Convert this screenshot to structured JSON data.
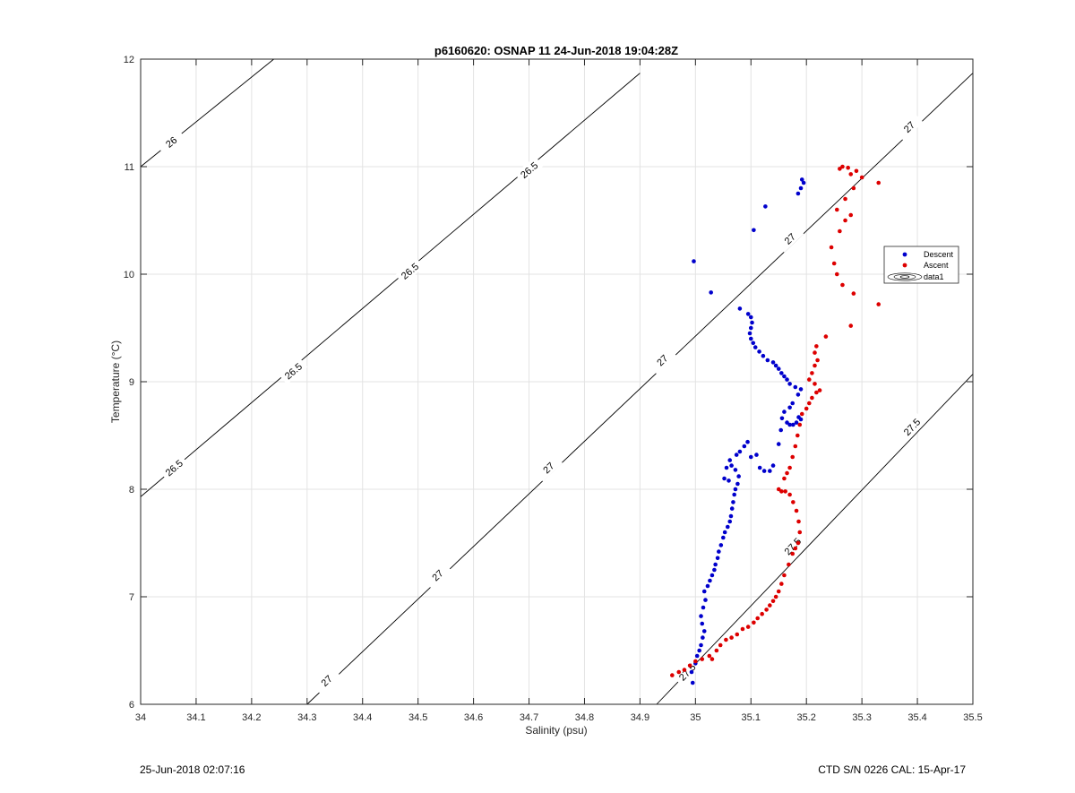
{
  "footer": {
    "timestamp": "25-Jun-2018 02:07:16",
    "instrument": "CTD S/N 0226  CAL: 15-Apr-17"
  },
  "chart_data": {
    "type": "scatter",
    "title": "p6160620: OSNAP 11 24-Jun-2018 19:04:28Z",
    "xlabel": "Salinity (psu)",
    "ylabel": "Temperature (°C)",
    "xlim": [
      34,
      35.5
    ],
    "ylim": [
      6,
      12
    ],
    "grid": true,
    "xticks": [
      "34",
      "34.1",
      "34.2",
      "34.3",
      "34.4",
      "34.5",
      "34.6",
      "34.7",
      "34.8",
      "34.9",
      "35",
      "35.1",
      "35.2",
      "35.3",
      "35.4",
      "35.5"
    ],
    "yticks": [
      "6",
      "7",
      "8",
      "9",
      "10",
      "11",
      "12"
    ],
    "legend_position": "right",
    "colors": {
      "descent": "#0000cc",
      "ascent": "#dd0000",
      "contour": "#000000"
    },
    "contours": [
      {
        "label": "26",
        "points": [
          [
            34.0,
            11.0
          ],
          [
            34.24,
            12.0
          ]
        ],
        "label_points": [
          [
            34.055,
            11.23
          ]
        ]
      },
      {
        "label": "26.5",
        "points": [
          [
            34.0,
            7.93
          ],
          [
            34.9,
            11.87
          ]
        ],
        "label_points": [
          [
            34.06,
            8.2
          ],
          [
            34.275,
            9.1
          ],
          [
            34.485,
            10.03
          ],
          [
            34.7,
            10.97
          ]
        ]
      },
      {
        "label": "27",
        "points": [
          [
            34.3,
            6.0
          ],
          [
            35.5,
            11.87
          ]
        ],
        "label_points": [
          [
            34.335,
            6.22
          ],
          [
            34.535,
            7.2
          ],
          [
            34.735,
            8.2
          ],
          [
            34.94,
            9.2
          ],
          [
            35.17,
            10.33
          ],
          [
            35.385,
            11.37
          ]
        ]
      },
      {
        "label": "27.5",
        "points": [
          [
            34.93,
            6.0
          ],
          [
            35.5,
            9.07
          ]
        ],
        "label_points": [
          [
            34.985,
            6.3
          ],
          [
            35.175,
            7.47
          ],
          [
            35.39,
            8.58
          ]
        ]
      }
    ],
    "series": [
      {
        "name": "Descent",
        "points": [
          [
            34.995,
            6.2
          ],
          [
            34.993,
            6.3
          ],
          [
            35.0,
            6.38
          ],
          [
            35.003,
            6.45
          ],
          [
            35.007,
            6.5
          ],
          [
            35.01,
            6.55
          ],
          [
            35.013,
            6.62
          ],
          [
            35.016,
            6.68
          ],
          [
            35.012,
            6.75
          ],
          [
            35.01,
            6.82
          ],
          [
            35.014,
            6.9
          ],
          [
            35.018,
            6.97
          ],
          [
            35.016,
            7.05
          ],
          [
            35.022,
            7.1
          ],
          [
            35.026,
            7.15
          ],
          [
            35.03,
            7.2
          ],
          [
            35.034,
            7.25
          ],
          [
            35.036,
            7.3
          ],
          [
            35.04,
            7.36
          ],
          [
            35.042,
            7.42
          ],
          [
            35.046,
            7.48
          ],
          [
            35.05,
            7.55
          ],
          [
            35.053,
            7.6
          ],
          [
            35.058,
            7.65
          ],
          [
            35.062,
            7.7
          ],
          [
            35.064,
            7.75
          ],
          [
            35.066,
            7.82
          ],
          [
            35.068,
            7.88
          ],
          [
            35.07,
            7.95
          ],
          [
            35.072,
            8.0
          ],
          [
            35.076,
            8.05
          ],
          [
            35.078,
            8.12
          ],
          [
            35.072,
            8.18
          ],
          [
            35.065,
            8.22
          ],
          [
            35.06,
            8.08
          ],
          [
            35.052,
            8.1
          ],
          [
            35.056,
            8.2
          ],
          [
            35.062,
            8.27
          ],
          [
            35.074,
            8.32
          ],
          [
            35.08,
            8.35
          ],
          [
            35.088,
            8.4
          ],
          [
            35.094,
            8.44
          ],
          [
            35.1,
            8.3
          ],
          [
            35.11,
            8.32
          ],
          [
            35.116,
            8.2
          ],
          [
            35.124,
            8.17
          ],
          [
            35.134,
            8.17
          ],
          [
            35.14,
            8.22
          ],
          [
            35.15,
            8.42
          ],
          [
            35.154,
            8.55
          ],
          [
            35.156,
            8.66
          ],
          [
            35.16,
            8.72
          ],
          [
            35.165,
            8.62
          ],
          [
            35.17,
            8.6
          ],
          [
            35.176,
            8.6
          ],
          [
            35.182,
            8.62
          ],
          [
            35.186,
            8.67
          ],
          [
            35.19,
            8.65
          ],
          [
            35.17,
            8.76
          ],
          [
            35.175,
            8.8
          ],
          [
            35.185,
            8.88
          ],
          [
            35.19,
            8.93
          ],
          [
            35.18,
            8.95
          ],
          [
            35.17,
            8.98
          ],
          [
            35.165,
            9.02
          ],
          [
            35.16,
            9.05
          ],
          [
            35.155,
            9.08
          ],
          [
            35.15,
            9.12
          ],
          [
            35.145,
            9.15
          ],
          [
            35.14,
            9.18
          ],
          [
            35.13,
            9.2
          ],
          [
            35.122,
            9.24
          ],
          [
            35.115,
            9.28
          ],
          [
            35.108,
            9.32
          ],
          [
            35.104,
            9.36
          ],
          [
            35.1,
            9.4
          ],
          [
            35.098,
            9.45
          ],
          [
            35.1,
            9.5
          ],
          [
            35.102,
            9.55
          ],
          [
            35.1,
            9.6
          ],
          [
            35.095,
            9.63
          ],
          [
            35.08,
            9.68
          ],
          [
            35.028,
            9.83
          ],
          [
            34.997,
            10.12
          ],
          [
            35.105,
            10.41
          ],
          [
            35.126,
            10.63
          ],
          [
            35.185,
            10.75
          ],
          [
            35.19,
            10.8
          ],
          [
            35.195,
            10.85
          ],
          [
            35.192,
            10.88
          ]
        ]
      },
      {
        "name": "Ascent",
        "points": [
          [
            34.958,
            6.27
          ],
          [
            34.97,
            6.3
          ],
          [
            34.98,
            6.32
          ],
          [
            34.99,
            6.36
          ],
          [
            35.0,
            6.4
          ],
          [
            35.012,
            6.42
          ],
          [
            35.025,
            6.45
          ],
          [
            35.03,
            6.42
          ],
          [
            35.038,
            6.5
          ],
          [
            35.045,
            6.55
          ],
          [
            35.055,
            6.6
          ],
          [
            35.065,
            6.62
          ],
          [
            35.075,
            6.65
          ],
          [
            35.085,
            6.7
          ],
          [
            35.095,
            6.72
          ],
          [
            35.105,
            6.76
          ],
          [
            35.112,
            6.8
          ],
          [
            35.12,
            6.84
          ],
          [
            35.128,
            6.88
          ],
          [
            35.134,
            6.92
          ],
          [
            35.14,
            6.96
          ],
          [
            35.145,
            7.0
          ],
          [
            35.15,
            7.05
          ],
          [
            35.155,
            7.12
          ],
          [
            35.16,
            7.2
          ],
          [
            35.168,
            7.3
          ],
          [
            35.175,
            7.4
          ],
          [
            35.18,
            7.45
          ],
          [
            35.185,
            7.5
          ],
          [
            35.188,
            7.6
          ],
          [
            35.186,
            7.7
          ],
          [
            35.182,
            7.8
          ],
          [
            35.176,
            7.88
          ],
          [
            35.17,
            7.95
          ],
          [
            35.162,
            7.98
          ],
          [
            35.155,
            7.98
          ],
          [
            35.15,
            8.0
          ],
          [
            35.16,
            8.1
          ],
          [
            35.165,
            8.15
          ],
          [
            35.17,
            8.2
          ],
          [
            35.175,
            8.3
          ],
          [
            35.18,
            8.4
          ],
          [
            35.184,
            8.5
          ],
          [
            35.188,
            8.6
          ],
          [
            35.192,
            8.7
          ],
          [
            35.2,
            8.75
          ],
          [
            35.205,
            8.8
          ],
          [
            35.21,
            8.85
          ],
          [
            35.218,
            8.9
          ],
          [
            35.224,
            8.92
          ],
          [
            35.215,
            8.98
          ],
          [
            35.205,
            9.02
          ],
          [
            35.21,
            9.08
          ],
          [
            35.215,
            9.15
          ],
          [
            35.22,
            9.2
          ],
          [
            35.215,
            9.27
          ],
          [
            35.218,
            9.33
          ],
          [
            35.235,
            9.42
          ],
          [
            35.28,
            9.52
          ],
          [
            35.33,
            9.72
          ],
          [
            35.285,
            9.82
          ],
          [
            35.265,
            9.9
          ],
          [
            35.255,
            10.0
          ],
          [
            35.25,
            10.1
          ],
          [
            35.245,
            10.25
          ],
          [
            35.26,
            10.4
          ],
          [
            35.27,
            10.5
          ],
          [
            35.28,
            10.55
          ],
          [
            35.255,
            10.6
          ],
          [
            35.27,
            10.7
          ],
          [
            35.285,
            10.8
          ],
          [
            35.33,
            10.85
          ],
          [
            35.3,
            10.9
          ],
          [
            35.28,
            10.93
          ],
          [
            35.26,
            10.98
          ],
          [
            35.265,
            11.0
          ],
          [
            35.275,
            10.99
          ],
          [
            35.29,
            10.96
          ]
        ]
      },
      {
        "name": "data1",
        "points": []
      }
    ]
  }
}
